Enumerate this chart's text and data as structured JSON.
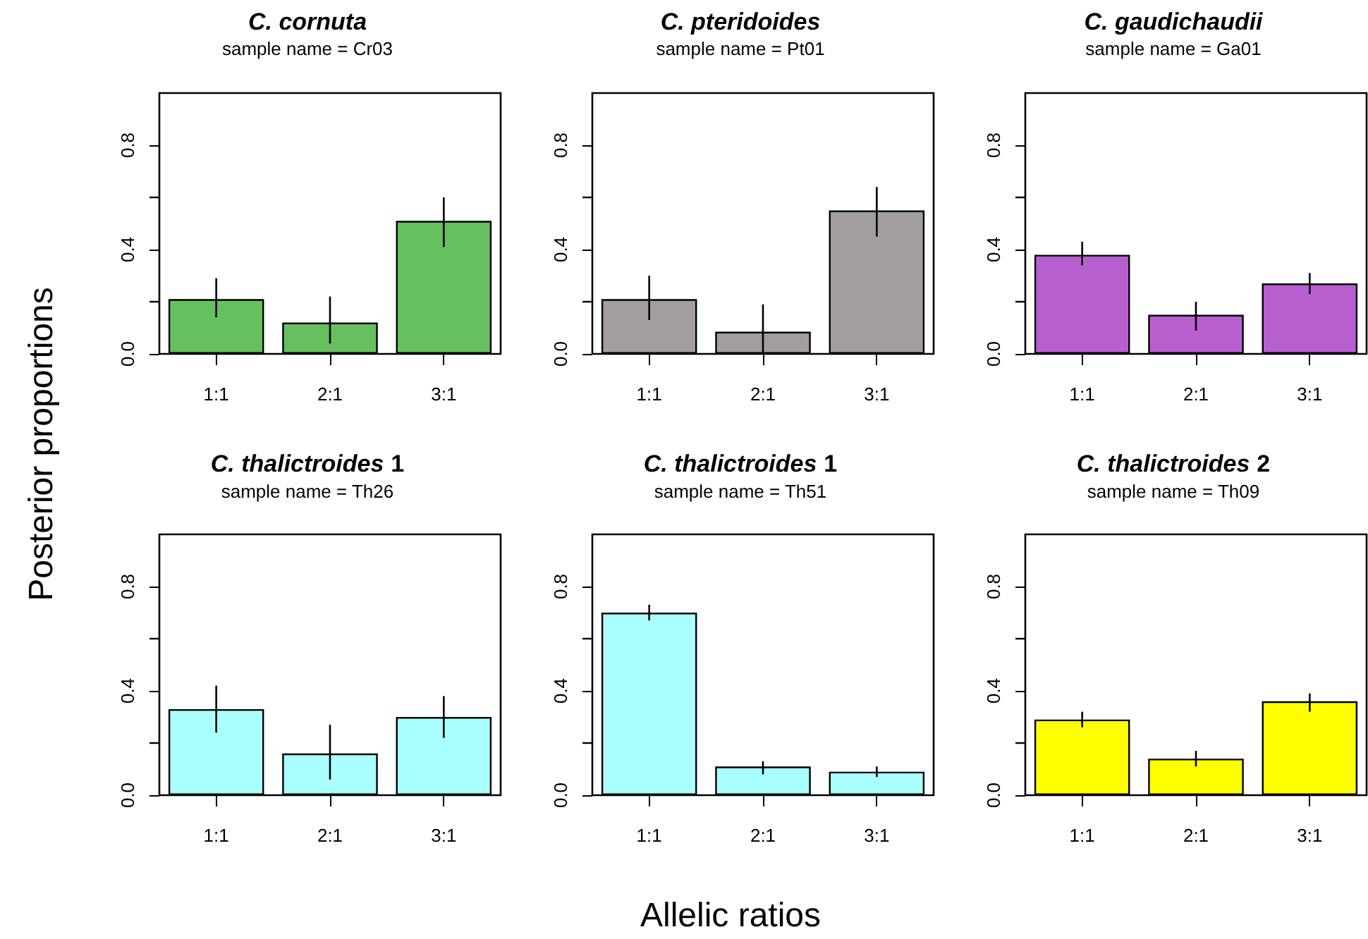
{
  "chart_data": [
    {
      "type": "bar",
      "title": "C. cornuta",
      "subtitle": "sample name = Cr03",
      "ylabel": "Posterior proportions",
      "categories": [
        "1:1",
        "2:1",
        "3:1"
      ],
      "values": [
        0.21,
        0.12,
        0.51
      ],
      "errors": [
        [
          0.14,
          0.29
        ],
        [
          0.04,
          0.22
        ],
        [
          0.41,
          0.6
        ]
      ],
      "color": "#66c060",
      "ylim": [
        0,
        1
      ],
      "yticks": [
        {
          "value": 0,
          "label": "0.0"
        },
        {
          "value": 0.2,
          "label": null
        },
        {
          "value": 0.4,
          "label": "0.4"
        },
        {
          "value": 0.6,
          "label": null
        },
        {
          "value": 0.8,
          "label": "0.8"
        }
      ],
      "grid": false
    },
    {
      "type": "bar",
      "title": "C. pteridoides",
      "subtitle": "sample name = Pt01",
      "categories": [
        "1:1",
        "2:1",
        "3:1"
      ],
      "values": [
        0.21,
        0.085,
        0.55
      ],
      "errors": [
        [
          0.13,
          0.3
        ],
        [
          0,
          0.19
        ],
        [
          0.45,
          0.64
        ]
      ],
      "color": "#a39e9e",
      "ylim": [
        0,
        1
      ],
      "yticks": [
        {
          "value": 0,
          "label": "0.0"
        },
        {
          "value": 0.2,
          "label": null
        },
        {
          "value": 0.4,
          "label": "0.4"
        },
        {
          "value": 0.6,
          "label": null
        },
        {
          "value": 0.8,
          "label": "0.8"
        }
      ],
      "grid": false
    },
    {
      "type": "bar",
      "title": "C. gaudichaudii",
      "subtitle": "sample name = Ga01",
      "categories": [
        "1:1",
        "2:1",
        "3:1"
      ],
      "values": [
        0.38,
        0.15,
        0.27
      ],
      "errors": [
        [
          0.34,
          0.43
        ],
        [
          0.09,
          0.2
        ],
        [
          0.23,
          0.31
        ]
      ],
      "color": "#b85fd0",
      "ylim": [
        0,
        1
      ],
      "yticks": [
        {
          "value": 0,
          "label": "0.0"
        },
        {
          "value": 0.2,
          "label": null
        },
        {
          "value": 0.4,
          "label": "0.4"
        },
        {
          "value": 0.6,
          "label": null
        },
        {
          "value": 0.8,
          "label": "0.8"
        }
      ],
      "grid": false
    },
    {
      "type": "bar",
      "title": "C. thalictroides 1",
      "subtitle": "sample name = Th26",
      "categories": [
        "1:1",
        "2:1",
        "3:1"
      ],
      "values": [
        0.33,
        0.16,
        0.3
      ],
      "errors": [
        [
          0.24,
          0.42
        ],
        [
          0.06,
          0.27
        ],
        [
          0.22,
          0.38
        ]
      ],
      "color": "#aaffff",
      "ylim": [
        0,
        1
      ],
      "yticks": [
        {
          "value": 0,
          "label": "0.0"
        },
        {
          "value": 0.2,
          "label": null
        },
        {
          "value": 0.4,
          "label": "0.4"
        },
        {
          "value": 0.6,
          "label": null
        },
        {
          "value": 0.8,
          "label": "0.8"
        }
      ],
      "grid": false
    },
    {
      "type": "bar",
      "title": "C. thalictroides 1",
      "subtitle": "sample name = Th51",
      "xlabel": "Allelic ratios",
      "categories": [
        "1:1",
        "2:1",
        "3:1"
      ],
      "values": [
        0.7,
        0.11,
        0.09
      ],
      "errors": [
        [
          0.67,
          0.73
        ],
        [
          0.08,
          0.13
        ],
        [
          0.07,
          0.11
        ]
      ],
      "color": "#aaffff",
      "ylim": [
        0,
        1
      ],
      "yticks": [
        {
          "value": 0,
          "label": "0.0"
        },
        {
          "value": 0.2,
          "label": null
        },
        {
          "value": 0.4,
          "label": "0.4"
        },
        {
          "value": 0.6,
          "label": null
        },
        {
          "value": 0.8,
          "label": "0.8"
        }
      ],
      "grid": false
    },
    {
      "type": "bar",
      "title": "C. thalictroides 2",
      "subtitle": "sample name = Th09",
      "categories": [
        "1:1",
        "2:1",
        "3:1"
      ],
      "values": [
        0.29,
        0.14,
        0.36
      ],
      "errors": [
        [
          0.26,
          0.32
        ],
        [
          0.11,
          0.17
        ],
        [
          0.32,
          0.39
        ]
      ],
      "color": "#ffff00",
      "ylim": [
        0,
        1
      ],
      "yticks": [
        {
          "value": 0,
          "label": "0.0"
        },
        {
          "value": 0.2,
          "label": null
        },
        {
          "value": 0.4,
          "label": "0.4"
        },
        {
          "value": 0.6,
          "label": null
        },
        {
          "value": 0.8,
          "label": "0.8"
        }
      ],
      "grid": false
    }
  ]
}
